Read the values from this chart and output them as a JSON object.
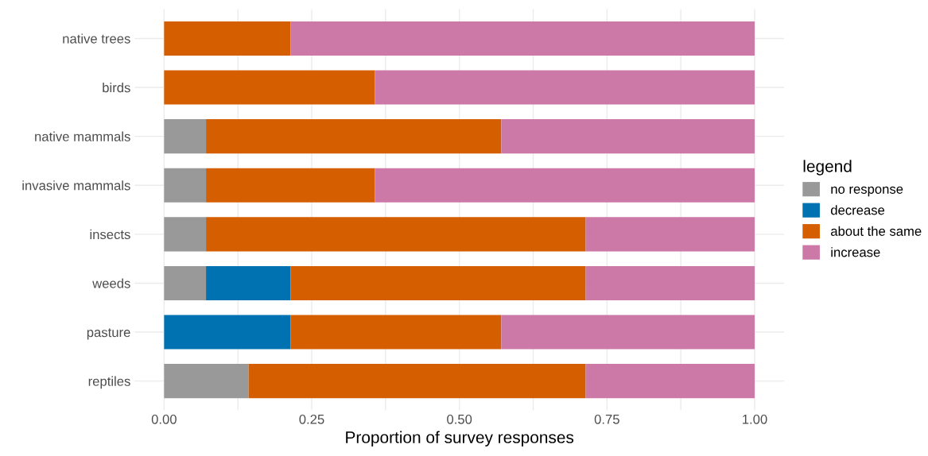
{
  "chart_data": {
    "type": "bar",
    "orientation": "horizontal",
    "stacked": true,
    "categories": [
      "native trees",
      "birds",
      "native mammals",
      "invasive mammals",
      "insects",
      "weeds",
      "pasture",
      "reptiles"
    ],
    "series": [
      {
        "name": "no response",
        "color": "#999999",
        "values": [
          0,
          0,
          0.071,
          0.071,
          0.071,
          0.071,
          0,
          0.143
        ]
      },
      {
        "name": "decrease",
        "color": "#0072b2",
        "values": [
          0,
          0,
          0,
          0,
          0,
          0.143,
          0.214,
          0
        ]
      },
      {
        "name": "about the same",
        "color": "#d55e00",
        "values": [
          0.214,
          0.357,
          0.5,
          0.286,
          0.643,
          0.5,
          0.357,
          0.571
        ]
      },
      {
        "name": "increase",
        "color": "#cc79a7",
        "values": [
          0.786,
          0.643,
          0.429,
          0.643,
          0.286,
          0.286,
          0.429,
          0.286
        ]
      }
    ],
    "xlabel": "Proportion of survey responses",
    "legend_title": "legend",
    "legend": "right",
    "xlim": [
      -0.05,
      1.05
    ],
    "xticks": [
      {
        "value": 0,
        "label": "0.00"
      },
      {
        "value": 0.125,
        "label": null
      },
      {
        "value": 0.25,
        "label": "0.25"
      },
      {
        "value": 0.375,
        "label": null
      },
      {
        "value": 0.5,
        "label": "0.50"
      },
      {
        "value": 0.625,
        "label": null
      },
      {
        "value": 0.75,
        "label": "0.75"
      },
      {
        "value": 0.875,
        "label": null
      },
      {
        "value": 1,
        "label": "1.00"
      }
    ],
    "grid": true
  }
}
